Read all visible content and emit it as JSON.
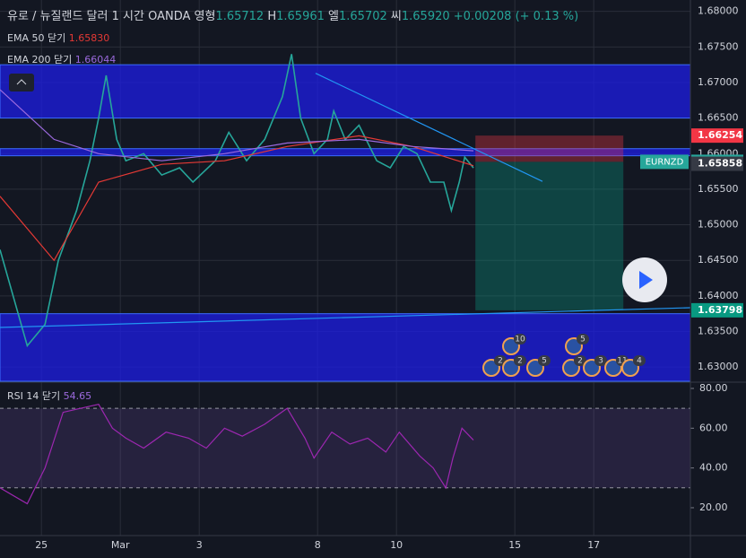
{
  "chart_data": [
    {
      "type": "line",
      "title": "유로 / 뉴질랜드 달러",
      "interval": "1 시간",
      "source": "OANDA",
      "ohlc": [
        {
          "key": "영형",
          "value": "1.65712"
        },
        {
          "key": "H",
          "value": "1.65961"
        },
        {
          "key": "엘",
          "value": "1.65702"
        },
        {
          "key": "씨",
          "value": "1.65920"
        }
      ],
      "change": "+0.00208 (+ 0.13 %)",
      "xlim": [
        -1.05,
        16.45
      ],
      "ylim": [
        1.628,
        1.6816
      ],
      "xticks": [
        {
          "value": 0,
          "label": "25"
        },
        {
          "value": 2,
          "label": "Mar"
        },
        {
          "value": 4,
          "label": "3"
        },
        {
          "value": 7,
          "label": "8"
        },
        {
          "value": 9,
          "label": "10"
        },
        {
          "value": 12,
          "label": "15"
        },
        {
          "value": 14,
          "label": "17"
        }
      ],
      "yticks": [
        {
          "value": 1.68,
          "label": "1.68000"
        },
        {
          "value": 1.675,
          "label": "1.67500"
        },
        {
          "value": 1.67,
          "label": "1.67000"
        },
        {
          "value": 1.665,
          "label": "1.66500"
        },
        {
          "value": 1.66,
          "label": "1.66000"
        },
        {
          "value": 1.655,
          "label": "1.65500"
        },
        {
          "value": 1.65,
          "label": "1.65000"
        },
        {
          "value": 1.645,
          "label": "1.64500"
        },
        {
          "value": 1.64,
          "label": "1.64000"
        },
        {
          "value": 1.635,
          "label": "1.63500"
        },
        {
          "value": 1.63,
          "label": "1.63000"
        }
      ],
      "grid": true,
      "series": [
        {
          "name": "EURNZD",
          "color": "#26a69a",
          "x": [
            -1.05,
            -0.36,
            0.09,
            0.43,
            0.89,
            1.23,
            1.45,
            1.64,
            1.91,
            2.14,
            2.59,
            3.05,
            3.5,
            3.84,
            4.41,
            4.75,
            5.2,
            5.66,
            6.11,
            6.34,
            6.57,
            6.91,
            7.25,
            7.41,
            7.7,
            8.05,
            8.5,
            8.84,
            9.18,
            9.52,
            9.86,
            10.2,
            10.39,
            10.59,
            10.73,
            10.95
          ],
          "values": [
            1.6465,
            1.633,
            1.636,
            1.645,
            1.652,
            1.659,
            1.665,
            1.671,
            1.662,
            1.659,
            1.66,
            1.657,
            1.658,
            1.656,
            1.659,
            1.663,
            1.659,
            1.662,
            1.668,
            1.674,
            1.665,
            1.66,
            1.662,
            1.666,
            1.662,
            1.664,
            1.659,
            1.658,
            1.661,
            1.66,
            1.656,
            1.656,
            1.652,
            1.656,
            1.6595,
            1.658
          ]
        },
        {
          "name": "EMA 50 닫기",
          "value_label": "1.65830",
          "color": "#e53935",
          "x": [
            -1.05,
            0.32,
            1.45,
            3.05,
            4.64,
            6.23,
            8.05,
            9.41,
            10.95
          ],
          "values": [
            1.654,
            1.645,
            1.656,
            1.6585,
            1.659,
            1.661,
            1.6625,
            1.661,
            1.6583
          ]
        },
        {
          "name": "EMA 200 닫기",
          "value_label": "1.66044",
          "color": "#9c6ade",
          "x": [
            -1.05,
            0.32,
            1.45,
            3.05,
            4.64,
            6.23,
            8.05,
            9.41,
            10.95
          ],
          "values": [
            1.669,
            1.662,
            1.66,
            1.659,
            1.66,
            1.6615,
            1.662,
            1.661,
            1.6604
          ]
        }
      ],
      "zones": [
        [
          1.665,
          1.6725
        ],
        [
          1.6597,
          1.6607
        ],
        [
          1.628,
          1.6375
        ]
      ],
      "trendlines": [
        {
          "x": [
            6.95,
            12.7
          ],
          "values": [
            1.6713,
            1.6561
          ]
        },
        {
          "x": [
            -1.05,
            16.45
          ],
          "values": [
            1.63557,
            1.63834
          ]
        }
      ],
      "position": {
        "x": [
          11.0,
          14.75
        ],
        "entry": 1.65885,
        "stop": 1.66254,
        "target": 1.63798
      },
      "price_labels": [
        {
          "value": 1.66254,
          "color": "#f23645"
        },
        {
          "value": 1.65885,
          "color": "#26a69a",
          "name": "EURNZD"
        },
        {
          "value": 1.65858,
          "color": "#363a45"
        },
        {
          "value": 1.63798,
          "color": "#089981"
        }
      ],
      "events": [
        "10",
        "5",
        "2",
        "2",
        "5",
        "2",
        "3",
        "11",
        "4"
      ]
    },
    {
      "type": "line",
      "title": "RSI 14 닫기",
      "value_label": "54.65",
      "xlim": [
        -1.05,
        16.45
      ],
      "ylim": [
        6.9,
        82.7
      ],
      "yticks": [
        {
          "value": 80,
          "label": "80.00"
        },
        {
          "value": 60,
          "label": "60.00"
        },
        {
          "value": 40,
          "label": "40.00"
        },
        {
          "value": 20,
          "label": "20.00"
        }
      ],
      "bands": [
        30,
        70
      ],
      "series": [
        {
          "name": "RSI",
          "color": "#9c27b0",
          "x": [
            -1.05,
            -0.36,
            0.09,
            0.55,
            1.0,
            1.45,
            1.8,
            2.14,
            2.59,
            3.16,
            3.73,
            4.18,
            4.64,
            5.09,
            5.66,
            6.23,
            6.68,
            6.91,
            7.36,
            7.82,
            8.27,
            8.73,
            9.07,
            9.59,
            9.93,
            10.25,
            10.43,
            10.66,
            10.95
          ],
          "values": [
            30,
            22,
            40,
            68,
            70,
            72,
            60,
            55,
            50,
            58,
            55,
            50,
            60,
            56,
            62,
            70,
            55,
            45,
            58,
            52,
            55,
            48,
            58,
            46,
            40,
            30,
            45,
            60,
            54
          ]
        }
      ]
    }
  ]
}
